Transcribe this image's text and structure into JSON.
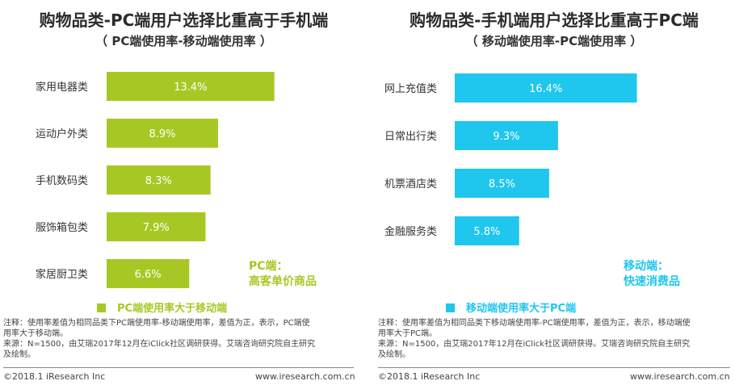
{
  "colors": {
    "left_bar": "#a7c824",
    "right_bar": "#1fc6ee"
  },
  "chart_data": [
    {
      "type": "bar",
      "orientation": "horizontal",
      "title": "购物品类-PC端用户选择比重高于手机端",
      "subtitle": "（ PC端使用率-移动端使用率 ）",
      "categories": [
        "家用电器类",
        "运动户外类",
        "手机数码类",
        "服饰箱包类",
        "家居厨卫类"
      ],
      "values": [
        13.4,
        8.9,
        8.3,
        7.9,
        6.6
      ],
      "value_labels": [
        "13.4%",
        "8.9%",
        "8.3%",
        "7.9%",
        "6.6%"
      ],
      "series": [
        {
          "name": "PC端使用率大于移动端",
          "values": [
            13.4,
            8.9,
            8.3,
            7.9,
            6.6
          ]
        }
      ],
      "annotation": [
        "PC端：",
        "高客单价商品"
      ],
      "footnote": [
        "注释：使用率差值为相同品类下PC端使用率-移动端使用率，差值为正，表示，PC端使",
        "用率大于移动端。",
        "来源：N=1500，由艾瑞2017年12月在iClick社区调研获得。艾瑞咨询研究院自主研究",
        "及绘制。"
      ],
      "footer_left": "©2018.1  iResearch Inc",
      "footer_right": "www.iresearch.com.cn"
    },
    {
      "type": "bar",
      "orientation": "horizontal",
      "title": "购物品类-手机端用户选择比重高于PC端",
      "subtitle": "（ 移动端使用率-PC端使用率 ）",
      "categories": [
        "网上充值类",
        "日常出行类",
        "机票酒店类",
        "金融服务类"
      ],
      "values": [
        16.4,
        9.3,
        8.5,
        5.8
      ],
      "value_labels": [
        "16.4%",
        "9.3%",
        "8.5%",
        "5.8%"
      ],
      "series": [
        {
          "name": "移动端使用率大于PC端",
          "values": [
            16.4,
            9.3,
            8.5,
            5.8
          ]
        }
      ],
      "annotation": [
        "移动端：",
        "快速消费品"
      ],
      "footnote": [
        "注释：使用率差值为相同品类下移动端使用率-PC端使用率，差值为正，表示，移动端使",
        "用率大于PC端。",
        "来源：N=1500，由艾瑞2017年12月在iClick社区调研获得。艾瑞咨询研究院自主研究",
        "及绘制。"
      ],
      "footer_left": "©2018.1  iResearch Inc",
      "footer_right": "www.iresearch.com.cn"
    }
  ]
}
